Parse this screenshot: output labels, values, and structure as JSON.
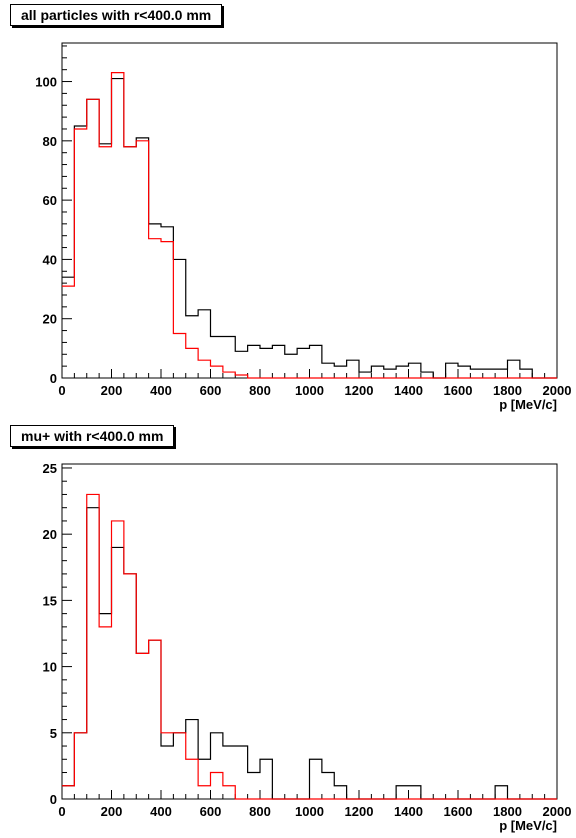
{
  "chart_data": [
    {
      "type": "histogram",
      "title": "all particles with r<400.0 mm",
      "xlabel": "p [MeV/c]",
      "ylabel": "",
      "xlim": [
        0,
        2000
      ],
      "ylim": [
        0,
        113
      ],
      "x_ticks": [
        0,
        200,
        400,
        600,
        800,
        1000,
        1200,
        1400,
        1600,
        1800,
        2000
      ],
      "y_ticks": [
        0,
        20,
        40,
        60,
        80,
        100
      ],
      "bin_width": 50,
      "grid": false,
      "series": [
        {
          "color": "#000000",
          "values": [
            34,
            85,
            94,
            79,
            101,
            78,
            81,
            52,
            51,
            40,
            21,
            23,
            14,
            14,
            9,
            11,
            10,
            11,
            8,
            10,
            11,
            5,
            4,
            6,
            2,
            4,
            3,
            4,
            5,
            2,
            0,
            5,
            4,
            3,
            3,
            3,
            6,
            3,
            0,
            0
          ]
        },
        {
          "color": "#ff0000",
          "values": [
            31,
            84,
            94,
            78,
            103,
            78,
            80,
            47,
            46,
            15,
            10,
            6,
            4,
            2,
            1,
            0,
            0,
            0,
            0,
            0,
            0,
            0,
            0,
            0,
            0,
            0,
            0,
            0,
            0,
            0,
            0,
            0,
            0,
            0,
            0,
            0,
            0,
            0,
            0,
            0
          ]
        }
      ]
    },
    {
      "type": "histogram",
      "title": "mu+ with r<400.0 mm",
      "xlabel": "p [MeV/c]",
      "ylabel": "",
      "xlim": [
        0,
        2000
      ],
      "ylim": [
        0,
        25.3
      ],
      "x_ticks": [
        0,
        200,
        400,
        600,
        800,
        1000,
        1200,
        1400,
        1600,
        1800,
        2000
      ],
      "y_ticks": [
        0,
        5,
        10,
        15,
        20,
        25
      ],
      "bin_width": 50,
      "grid": false,
      "series": [
        {
          "color": "#000000",
          "values": [
            1,
            5,
            22,
            14,
            19,
            17,
            11,
            12,
            4,
            5,
            6,
            3,
            5,
            4,
            4,
            2,
            3,
            0,
            0,
            0,
            3,
            2,
            1,
            0,
            0,
            0,
            0,
            1,
            1,
            0,
            0,
            0,
            0,
            0,
            0,
            1,
            0,
            0,
            0,
            0
          ]
        },
        {
          "color": "#ff0000",
          "values": [
            1,
            5,
            23,
            13,
            21,
            17,
            11,
            12,
            5,
            5,
            3,
            1,
            2,
            1,
            0,
            0,
            0,
            0,
            0,
            0,
            0,
            0,
            0,
            0,
            0,
            0,
            0,
            0,
            0,
            0,
            0,
            0,
            0,
            0,
            0,
            0,
            0,
            0,
            0,
            0
          ]
        }
      ]
    }
  ]
}
